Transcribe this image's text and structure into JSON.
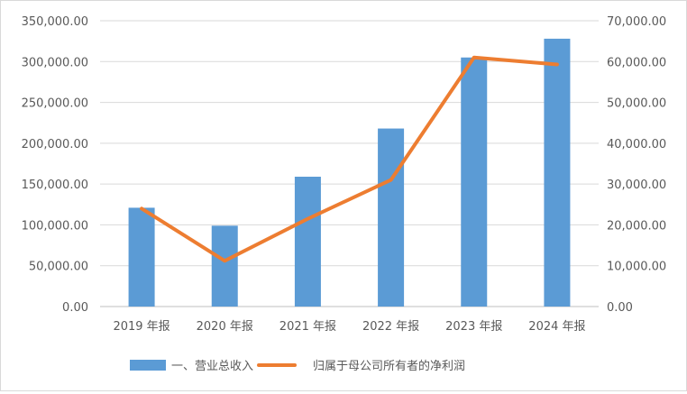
{
  "chart_data": {
    "type": "bar",
    "categories": [
      "2019 年报",
      "2020 年报",
      "2021 年报",
      "2022 年报",
      "2023 年报",
      "2024 年报"
    ],
    "series": [
      {
        "name": "一、营业总收入",
        "type": "bar",
        "axis": "left",
        "color": "#5b9bd5",
        "values": [
          121000,
          99000,
          159000,
          218000,
          305000,
          328000
        ]
      },
      {
        "name": "归属于母公司所有者的净利润",
        "type": "line",
        "axis": "right",
        "color": "#ed7d31",
        "values": [
          24000,
          11200,
          21500,
          31000,
          61000,
          59300
        ]
      }
    ],
    "y_left": {
      "lim": [
        0,
        350000
      ],
      "ticks": [
        "0.00",
        "50,000.00",
        "100,000.00",
        "150,000.00",
        "200,000.00",
        "250,000.00",
        "300,000.00",
        "350,000.00"
      ]
    },
    "y_right": {
      "lim": [
        0,
        70000
      ],
      "ticks": [
        "0.00",
        "10,000.00",
        "20,000.00",
        "30,000.00",
        "40,000.00",
        "50,000.00",
        "60,000.00",
        "70,000.00"
      ]
    },
    "grid": true,
    "legend": {
      "position": "bottom"
    }
  }
}
